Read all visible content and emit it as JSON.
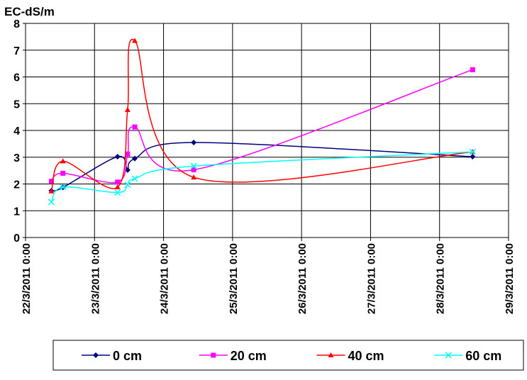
{
  "chart_data": {
    "type": "line",
    "y_label": "EC-dS/m",
    "x": [
      "22/3/2011 9:00",
      "22/3/2011 13:00",
      "23/3/2011 8:00",
      "23/3/2011 11:30",
      "23/3/2011 14:00",
      "24/3/2011 10:30",
      "28/3/2011 11:30"
    ],
    "series": [
      {
        "name": "0 cm",
        "color": "#000080",
        "marker": "diamond",
        "values": [
          1.75,
          1.87,
          3.02,
          2.52,
          2.95,
          3.55,
          3.02
        ]
      },
      {
        "name": "20 cm",
        "color": "#FF00FF",
        "marker": "square",
        "values": [
          2.1,
          2.4,
          2.07,
          3.12,
          4.13,
          2.53,
          6.27
        ]
      },
      {
        "name": "40 cm",
        "color": "#FF0000",
        "marker": "triangle",
        "values": [
          1.73,
          2.85,
          1.88,
          4.77,
          7.35,
          2.25,
          3.2
        ]
      },
      {
        "name": "60 cm",
        "color": "#00FFFF",
        "marker": "x",
        "values": [
          1.33,
          1.88,
          1.68,
          1.97,
          2.2,
          2.67,
          3.2
        ]
      }
    ],
    "xlim": [
      "22/3/2011 0:00",
      "29/3/2011 0:00"
    ],
    "xticks": [
      "22/3/2011 0:00",
      "23/3/2011 0:00",
      "24/3/2011 0:00",
      "25/3/2011 0:00",
      "26/3/2011 0:00",
      "27/3/2011 0:00",
      "28/3/2011 0:00",
      "29/3/2011 0:00"
    ],
    "ylim": [
      0,
      8
    ],
    "yticks": [
      0,
      1,
      2,
      3,
      4,
      5,
      6,
      7,
      8
    ],
    "grid": true,
    "smooth": true,
    "legend": "bottom"
  }
}
